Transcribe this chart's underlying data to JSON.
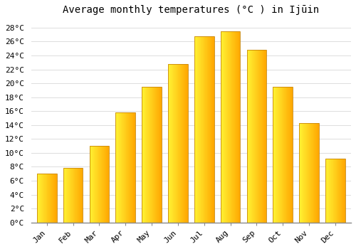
{
  "title": "Average monthly temperatures (°C ) in Ijūin",
  "months": [
    "Jan",
    "Feb",
    "Mar",
    "Apr",
    "May",
    "Jun",
    "Jul",
    "Aug",
    "Sep",
    "Oct",
    "Nov",
    "Dec"
  ],
  "values": [
    7.0,
    7.8,
    11.0,
    15.8,
    19.5,
    22.8,
    26.8,
    27.5,
    24.8,
    19.5,
    14.3,
    9.2
  ],
  "bar_color_left": "#FFD040",
  "bar_color_right": "#F5A800",
  "bar_edge_color": "#C8860A",
  "background_color": "#FFFFFF",
  "grid_color": "#DDDDDD",
  "ytick_labels": [
    "0°C",
    "2°C",
    "4°C",
    "6°C",
    "8°C",
    "10°C",
    "12°C",
    "14°C",
    "16°C",
    "18°C",
    "20°C",
    "22°C",
    "24°C",
    "26°C",
    "28°C"
  ],
  "ytick_values": [
    0,
    2,
    4,
    6,
    8,
    10,
    12,
    14,
    16,
    18,
    20,
    22,
    24,
    26,
    28
  ],
  "ylim": [
    0,
    29
  ],
  "title_fontsize": 10,
  "tick_fontsize": 8
}
